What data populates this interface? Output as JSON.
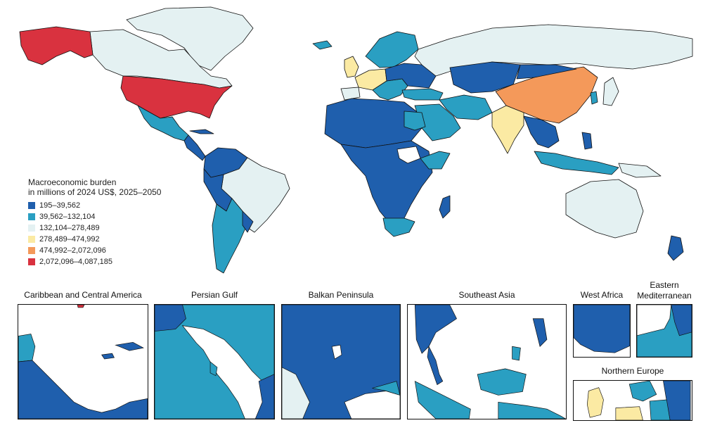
{
  "legend": {
    "title_line1": "Macroeconomic burden",
    "title_line2": "in millions of 2024 US$, 2025–2050",
    "bins": [
      {
        "label": "195–39,562",
        "color": "#1f5fad"
      },
      {
        "label": "39,562–132,104",
        "color": "#2a9fc2"
      },
      {
        "label": "132,104–278,489",
        "color": "#e4f1f2"
      },
      {
        "label": "278,489–474,992",
        "color": "#fbeaa3"
      },
      {
        "label": "474,992–2,072,096",
        "color": "#f4995a"
      },
      {
        "label": "2,072,096–4,087,185",
        "color": "#d9323f"
      }
    ]
  },
  "insets": {
    "caribbean": "Caribbean and Central America",
    "persian_gulf": "Persian Gulf",
    "balkan": "Balkan Peninsula",
    "southeast_asia": "Southeast Asia",
    "west_africa": "West Africa",
    "east_med_line1": "Eastern",
    "east_med_line2": "Mediterranean",
    "northern_europe": "Northern Europe"
  },
  "colors": {
    "bin1": "#1f5fad",
    "bin2": "#2a9fc2",
    "bin3": "#e4f1f2",
    "bin4": "#fbeaa3",
    "bin5": "#f4995a",
    "bin6": "#d9323f",
    "outline": "#111111"
  }
}
